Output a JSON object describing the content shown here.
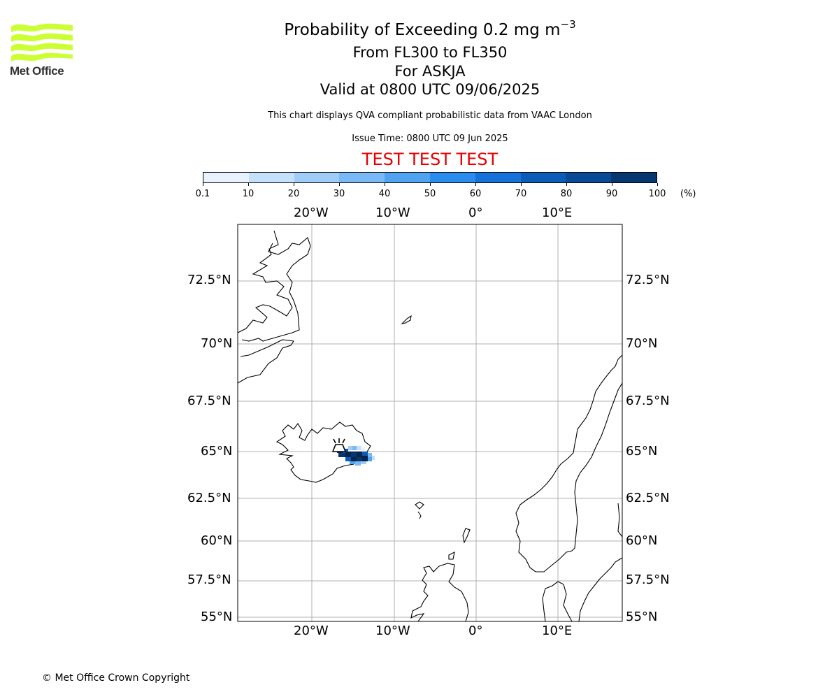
{
  "logo": {
    "text": "Met Office",
    "color": "#ccff33"
  },
  "title": {
    "main": "Probability of Exceeding 0.2 mg m",
    "main_exponent": "−3",
    "flight_levels": "From FL300 to FL350",
    "volcano": "For ASKJA",
    "valid": "Valid at 0800 UTC 09/06/2025"
  },
  "subtitle": "This chart displays QVA compliant probabilistic data from VAAC London",
  "issue_time": "Issue Time: 0800 UTC 09 Jun 2025",
  "test_banner": "TEST TEST TEST",
  "colorbar": {
    "ticks": [
      "0.1",
      "10",
      "20",
      "30",
      "40",
      "50",
      "60",
      "70",
      "80",
      "90",
      "100"
    ],
    "units": "(%)",
    "colors": [
      "#e8f3ff",
      "#c4e0fb",
      "#9fcdf8",
      "#79b9f5",
      "#4fa3f1",
      "#2a8ded",
      "#1472d8",
      "#0b5cb8",
      "#094a96",
      "#06376f",
      "#04264d"
    ]
  },
  "map": {
    "lon_labels": [
      "20°W",
      "10°W",
      "0°",
      "10°E"
    ],
    "lat_labels": [
      "72.5°N",
      "70°N",
      "67.5°N",
      "65°N",
      "62.5°N",
      "60°N",
      "57.5°N",
      "55°N"
    ],
    "volcano_icon": "volcano-icon",
    "volcano_name": "ASKJA"
  },
  "copyright": "© Met Office Crown Copyright"
}
